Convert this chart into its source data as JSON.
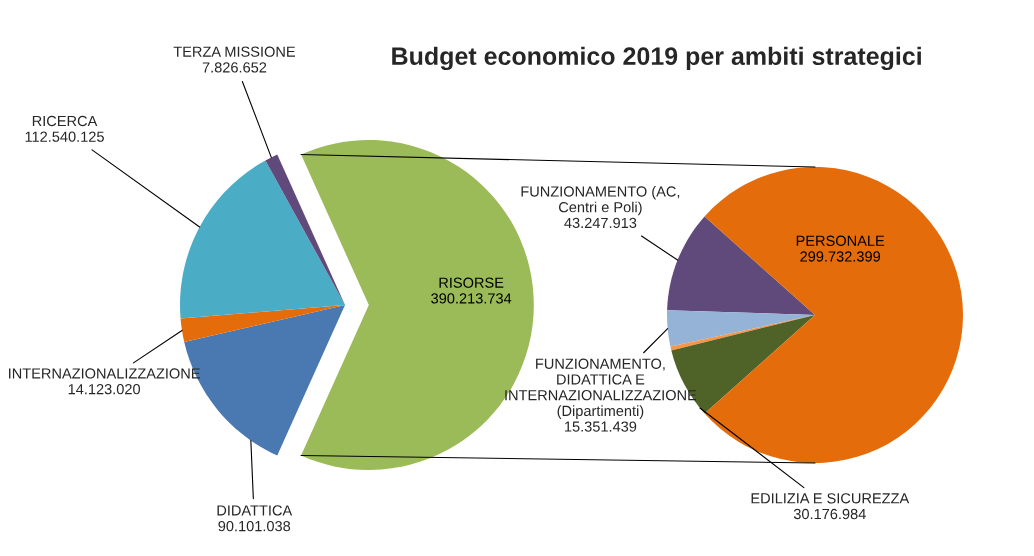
{
  "chart_data": [
    {
      "type": "pie",
      "title": "Budget economico 2019 per ambiti strategici",
      "categories": [
        "RISORSE",
        "DIDATTICA",
        "INTERNAZIONALIZZAZIONE",
        "RICERCA",
        "TERZA MISSIONE"
      ],
      "values": [
        390213734,
        90101038,
        14123020,
        112540125,
        7826652
      ],
      "value_labels": [
        "390.213.734",
        "90.101.038",
        "14.123.020",
        "112.540.125",
        "7.826.652"
      ],
      "colors": [
        "#9bbb59",
        "#4a78b0",
        "#e46c0a",
        "#4bacc6",
        "#604a7b"
      ]
    },
    {
      "type": "pie",
      "categories": [
        "FUNZIONAMENTO (AC, Centri e Poli)",
        "FUNZIONAMENTO, DIDATTICA E INTERNAZIONALIZZAZIONE (Dipartimenti)",
        null,
        "EDILIZIA E SICUREZZA",
        "PERSONALE"
      ],
      "values": [
        43247913,
        15351439,
        1700000,
        30176984,
        299732399
      ],
      "value_labels": [
        "43.247.913",
        "15.351.439",
        null,
        "30.176.984",
        "299.732.399"
      ],
      "colors": [
        "#604a7b",
        "#95b3d7",
        "#f79646",
        "#4f6228",
        "#e46c0a"
      ]
    }
  ]
}
